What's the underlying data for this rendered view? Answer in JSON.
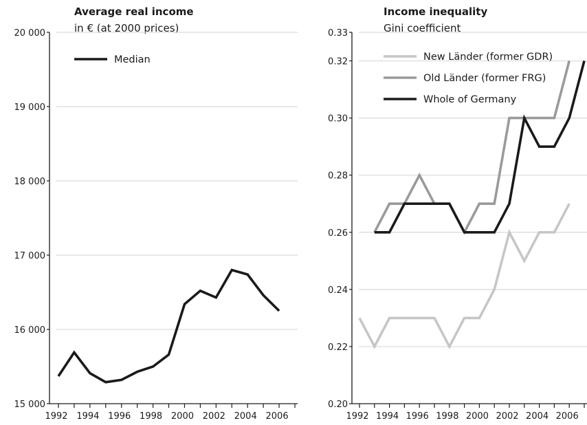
{
  "chart_data": [
    {
      "type": "line",
      "title": "Average real income",
      "subtitle": "in € (at 2000 prices)",
      "xlabel": "",
      "ylabel": "",
      "xlim": [
        1992,
        2007
      ],
      "ylim": [
        15000,
        20000
      ],
      "x_ticks": [
        1992,
        1994,
        1996,
        1998,
        2000,
        2002,
        2004,
        2006
      ],
      "x_tick_labels": [
        "1992",
        "1994",
        "1996",
        "1998",
        "2000",
        "2002",
        "2004",
        "2006"
      ],
      "y_ticks": [
        15000,
        16000,
        17000,
        18000,
        19000,
        20000
      ],
      "y_tick_labels": [
        "15 000",
        "16 000",
        "17 000",
        "18 000",
        "19 000",
        "20 000"
      ],
      "grid": "horizontal",
      "legend_position": "top-left",
      "series": [
        {
          "name": "Median",
          "color": "#1a1a1a",
          "x": [
            1992,
            1993,
            1994,
            1995,
            1996,
            1997,
            1998,
            1999,
            2000,
            2001,
            2002,
            2003,
            2004,
            2005,
            2006,
            2007
          ],
          "values": [
            15370,
            15690,
            15410,
            15290,
            15320,
            15430,
            15500,
            15660,
            16340,
            16520,
            16430,
            16800,
            16740,
            16460,
            16250,
            null
          ]
        }
      ]
    },
    {
      "type": "line",
      "title": "Income inequality",
      "subtitle": "Gini coefficient",
      "xlabel": "",
      "ylabel": "",
      "xlim": [
        1992,
        2007
      ],
      "ylim": [
        0.2,
        0.33
      ],
      "x_ticks": [
        1992,
        1994,
        1996,
        1998,
        2000,
        2002,
        2004,
        2006
      ],
      "x_tick_labels": [
        "1992",
        "1994",
        "1996",
        "1998",
        "2000",
        "2002",
        "2004",
        "2006"
      ],
      "y_ticks": [
        0.2,
        0.22,
        0.24,
        0.26,
        0.28,
        0.3,
        0.32,
        0.33
      ],
      "y_tick_labels": [
        "0.20",
        "0.22",
        "0.24",
        "0.26",
        "0.28",
        "0.30",
        "0.32",
        "0.33"
      ],
      "grid": "horizontal",
      "legend_position": "top-left",
      "series": [
        {
          "name": "New Länder (former GDR)",
          "color": "#c6c6c6",
          "x": [
            1992,
            1993,
            1994,
            1995,
            1996,
            1997,
            1998,
            1999,
            2000,
            2001,
            2002,
            2003,
            2004,
            2005,
            2006,
            2007
          ],
          "values": [
            0.23,
            0.22,
            0.23,
            0.23,
            0.23,
            0.23,
            0.22,
            0.23,
            0.23,
            0.24,
            0.26,
            0.25,
            0.26,
            0.26,
            0.27,
            null
          ]
        },
        {
          "name": "Old Länder (former FRG)",
          "color": "#9a9a9a",
          "x": [
            1992,
            1993,
            1994,
            1995,
            1996,
            1997,
            1998,
            1999,
            2000,
            2001,
            2002,
            2003,
            2004,
            2005,
            2006,
            2007
          ],
          "values": [
            null,
            0.26,
            0.27,
            0.27,
            0.28,
            0.27,
            0.27,
            0.26,
            0.27,
            0.27,
            0.3,
            0.3,
            0.3,
            0.3,
            0.32,
            null
          ]
        },
        {
          "name": "Whole of Germany",
          "color": "#1a1a1a",
          "x": [
            1992,
            1993,
            1994,
            1995,
            1996,
            1997,
            1998,
            1999,
            2000,
            2001,
            2002,
            2003,
            2004,
            2005,
            2006,
            2007
          ],
          "values": [
            null,
            0.26,
            0.26,
            0.27,
            0.27,
            0.27,
            0.27,
            0.26,
            0.26,
            0.26,
            0.27,
            0.3,
            0.29,
            0.29,
            0.3,
            0.32
          ]
        }
      ]
    }
  ]
}
